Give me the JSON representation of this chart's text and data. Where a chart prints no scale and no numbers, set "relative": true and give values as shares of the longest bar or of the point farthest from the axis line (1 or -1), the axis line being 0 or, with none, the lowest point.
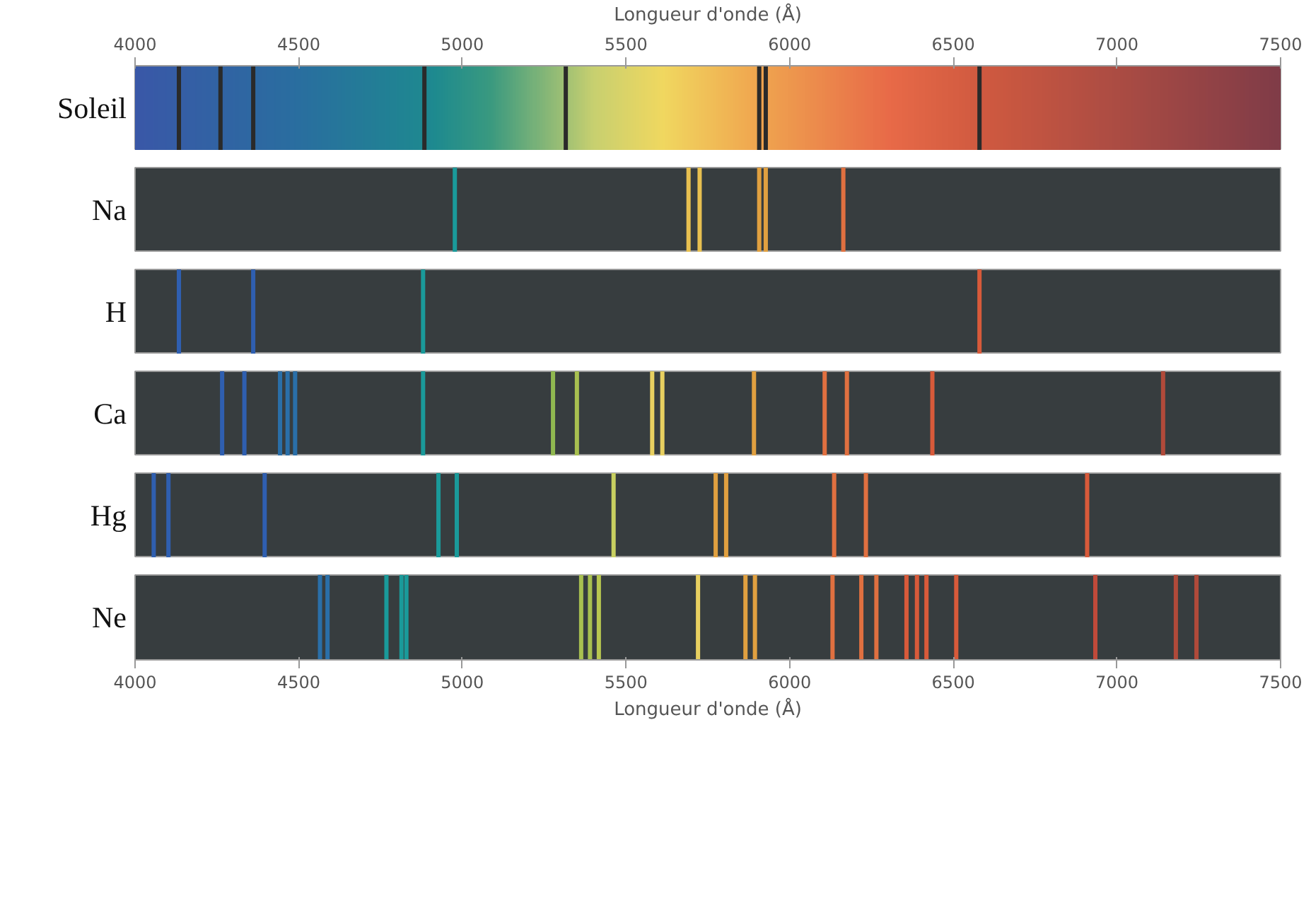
{
  "chart_data": [
    {
      "type": "bar",
      "relative": true,
      "ylabel": "Soleil",
      "xlim": [
        4000,
        7500
      ],
      "x2label": "Longueur d'onde (Å)",
      "x2lim": [
        4000,
        7500
      ],
      "x2ticks": [
        4000,
        4500,
        5000,
        5500,
        6000,
        6500,
        7000,
        7500
      ],
      "x": [
        4134,
        4261,
        4361,
        4884,
        5316,
        5907,
        5927,
        6580
      ],
      "values": [
        1,
        1,
        1,
        1,
        1,
        1,
        1,
        1
      ],
      "colors": [
        "#2a2a2a",
        "#2a2a2a",
        "#2a2a2a",
        "#2a2a2a",
        "#2a2a2a",
        "#2a2a2a",
        "#2a2a2a",
        "#2a2a2a"
      ]
    },
    {
      "type": "bar",
      "relative": true,
      "ylabel": "Na",
      "xlim": [
        4000,
        7500
      ],
      "tick_labels": false,
      "x": [
        4977,
        5691,
        5725,
        5907,
        5927,
        6164
      ],
      "values": [
        1,
        1,
        1,
        1,
        1,
        1
      ],
      "colors": [
        "#1a9a9a",
        "#e8c050",
        "#e8c050",
        "#e0a040",
        "#e0a040",
        "#e07040"
      ]
    },
    {
      "type": "bar",
      "relative": true,
      "ylabel": "H",
      "xlim": [
        4000,
        7500
      ],
      "tick_labels": false,
      "x": [
        4134,
        4361,
        4880,
        6580
      ],
      "values": [
        1,
        1,
        1,
        1
      ],
      "colors": [
        "#2f5fb0",
        "#2f5fb0",
        "#1a9a9a",
        "#d85a3a"
      ]
    },
    {
      "type": "bar",
      "relative": true,
      "ylabel": "Ca",
      "xlim": [
        4000,
        7500
      ],
      "tick_labels": false,
      "x": [
        4266,
        4334,
        4443,
        4466,
        4489,
        4880,
        5277,
        5350,
        5580,
        5611,
        5891,
        6107,
        6175,
        6436,
        7141
      ],
      "values": [
        1,
        1,
        1,
        1,
        1,
        1,
        1,
        1,
        1,
        1,
        1,
        1,
        1,
        1,
        1
      ],
      "colors": [
        "#2f5fb0",
        "#2f5fb0",
        "#2a6fa8",
        "#2a6fa8",
        "#2a6fa8",
        "#1a9a9a",
        "#90b850",
        "#a8c050",
        "#e8d060",
        "#e8d060",
        "#e0a040",
        "#e07040",
        "#e07040",
        "#d85a3a",
        "#b04a3a"
      ]
    },
    {
      "type": "bar",
      "relative": true,
      "ylabel": "Hg",
      "xlim": [
        4000,
        7500
      ],
      "tick_labels": false,
      "x": [
        4057,
        4102,
        4396,
        4927,
        4983,
        5462,
        5774,
        5806,
        6136,
        6233,
        6909
      ],
      "values": [
        1,
        1,
        1,
        1,
        1,
        1,
        1,
        1,
        1,
        1,
        1
      ],
      "colors": [
        "#2f5fb0",
        "#2f5fb0",
        "#2f5fb0",
        "#1a9a9a",
        "#1a9a9a",
        "#c8d060",
        "#e0a040",
        "#e0a040",
        "#e07040",
        "#e07040",
        "#d85a3a"
      ]
    },
    {
      "type": "bar",
      "relative": true,
      "ylabel": "Ne",
      "xlabel": "Longueur d'onde (Å)",
      "xlim": [
        4000,
        7500
      ],
      "xticks": [
        4000,
        4500,
        5000,
        5500,
        6000,
        6500,
        7000,
        7500
      ],
      "x": [
        4565,
        4588,
        4768,
        4814,
        4829,
        5363,
        5390,
        5417,
        5720,
        5865,
        5894,
        6131,
        6219,
        6265,
        6357,
        6389,
        6418,
        6509,
        6934,
        7180,
        7243
      ],
      "values": [
        1,
        1,
        1,
        1,
        1,
        1,
        1,
        1,
        1,
        1,
        1,
        1,
        1,
        1,
        1,
        1,
        1,
        1,
        1,
        1,
        1
      ],
      "colors": [
        "#2a6fa8",
        "#2a6fa8",
        "#1a9a9a",
        "#1a9a9a",
        "#1a9a9a",
        "#a8c050",
        "#a8c050",
        "#b8c850",
        "#e8d060",
        "#e0a040",
        "#e0a040",
        "#e07040",
        "#e07040",
        "#e07040",
        "#d85a3a",
        "#d85a3a",
        "#d85a3a",
        "#d85a3a",
        "#c04a3a",
        "#b04a3a",
        "#b04a3a"
      ]
    }
  ]
}
